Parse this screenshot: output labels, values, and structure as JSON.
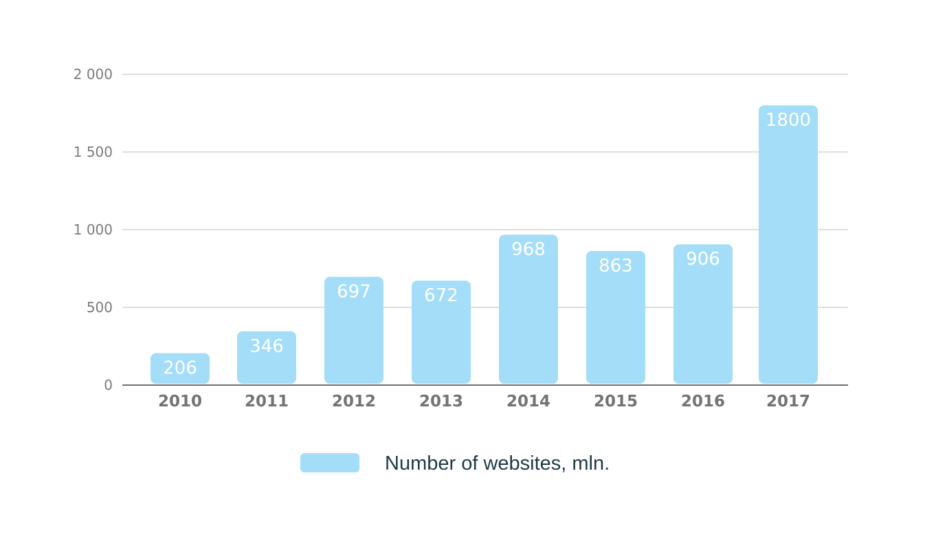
{
  "chart_data": {
    "type": "bar",
    "categories": [
      "2010",
      "2011",
      "2012",
      "2013",
      "2014",
      "2015",
      "2016",
      "2017"
    ],
    "series": [
      {
        "name": "Number of websites, mln.",
        "values": [
          206,
          346,
          697,
          672,
          968,
          863,
          906,
          1800
        ],
        "value_labels": [
          "206",
          "346",
          "697",
          "672",
          "968",
          "863",
          "906",
          "1800"
        ],
        "color": "#a3ddf7"
      }
    ],
    "ylim": [
      0,
      2000
    ],
    "yticks": [
      0,
      500,
      1000,
      1500,
      2000
    ],
    "ytick_labels": [
      "0",
      "500",
      "1 000",
      "1 500",
      "2 000"
    ],
    "xlabel": "",
    "ylabel": "",
    "grid": true,
    "legend": {
      "position": "bottom-center",
      "label": "Number of websites, mln."
    },
    "colors": {
      "bar": "#a3ddf7",
      "bar_label": "#ffffff",
      "grid": "#bdbdbd",
      "axis": "#6e6e6e",
      "tick_text": "#737373",
      "legend_text": "#1e3a45"
    }
  }
}
